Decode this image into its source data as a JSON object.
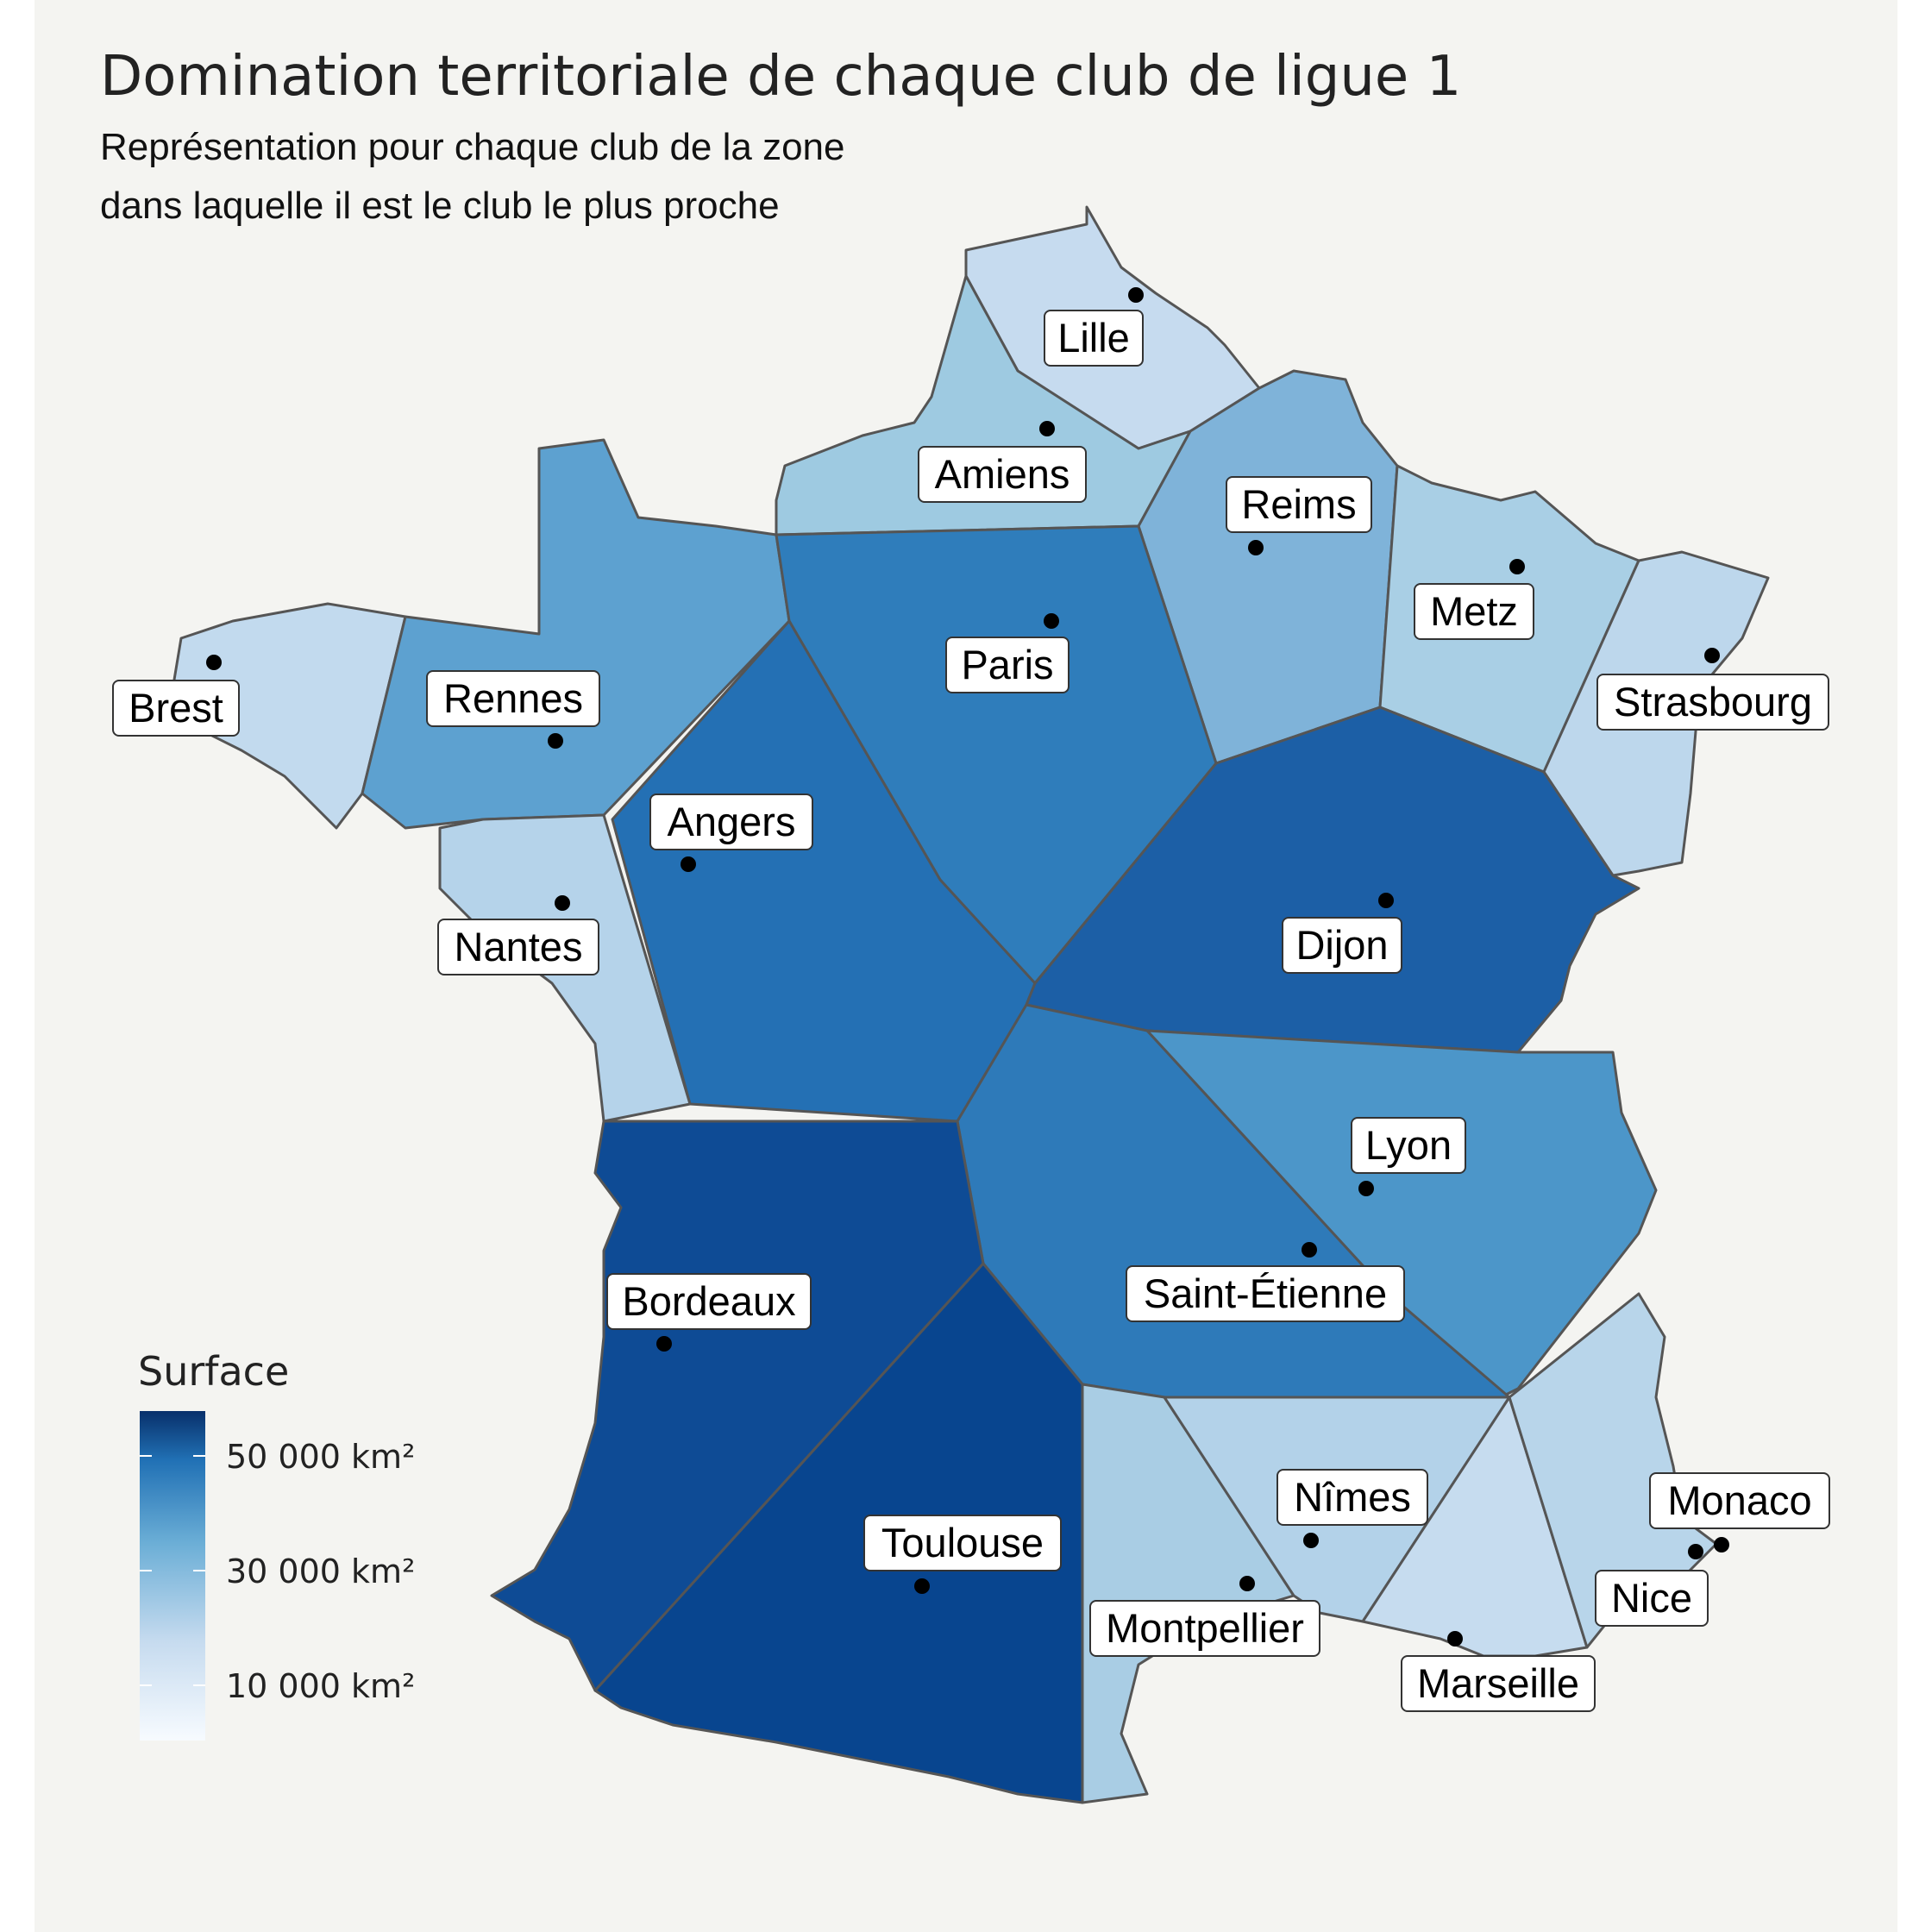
{
  "title": "Domination territoriale de chaque club de ligue 1",
  "subtitle_line1": "Représentation pour chaque club de la zone",
  "subtitle_line2": "dans laquelle il est le club le plus proche",
  "legend": {
    "title": "Surface",
    "ticks": [
      "50 000 km²",
      "30 000 km²",
      "10 000 km²"
    ],
    "scale_min_color": "#f7fbff",
    "scale_max_color": "#08306b"
  },
  "colors": {
    "background": "#f4f4f1",
    "border": "#555555"
  },
  "clubs": [
    {
      "name": "Lille",
      "color": "#c6dbef"
    },
    {
      "name": "Amiens",
      "color": "#9ecae1"
    },
    {
      "name": "Reims",
      "color": "#7fb3d9"
    },
    {
      "name": "Metz",
      "color": "#a9cfe5"
    },
    {
      "name": "Strasbourg",
      "color": "#bdd7ec"
    },
    {
      "name": "Brest",
      "color": "#c2daee"
    },
    {
      "name": "Rennes",
      "color": "#5da1d0"
    },
    {
      "name": "Paris",
      "color": "#2f7dbb"
    },
    {
      "name": "Angers",
      "color": "#2470b4"
    },
    {
      "name": "Dijon",
      "color": "#1c5fa6"
    },
    {
      "name": "Nantes",
      "color": "#b5d3ea"
    },
    {
      "name": "Lyon",
      "color": "#4c96c9"
    },
    {
      "name": "Saint-Étienne",
      "color": "#2e7ab9"
    },
    {
      "name": "Bordeaux",
      "color": "#0e4b95"
    },
    {
      "name": "Toulouse",
      "color": "#08458f"
    },
    {
      "name": "Montpellier",
      "color": "#a9cde4"
    },
    {
      "name": "Nîmes",
      "color": "#b3d2e9"
    },
    {
      "name": "Marseille",
      "color": "#c6dcef"
    },
    {
      "name": "Nice",
      "color": "#b8d5ea"
    },
    {
      "name": "Monaco",
      "color": "#b8d5ea"
    }
  ]
}
